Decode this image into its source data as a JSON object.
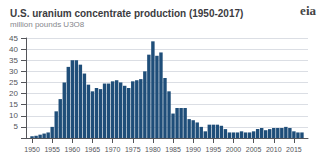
{
  "chart_data": {
    "type": "bar",
    "title": "U.S. uranium concentrate production (1950-2017)",
    "subtitle": "million pounds U3O8",
    "annotations": [
      "eia"
    ],
    "color": "#1f4e79",
    "x": [
      1950,
      1951,
      1952,
      1953,
      1954,
      1955,
      1956,
      1957,
      1958,
      1959,
      1960,
      1961,
      1962,
      1963,
      1964,
      1965,
      1966,
      1967,
      1968,
      1969,
      1970,
      1971,
      1972,
      1973,
      1974,
      1975,
      1976,
      1977,
      1978,
      1979,
      1980,
      1981,
      1982,
      1983,
      1984,
      1985,
      1986,
      1987,
      1988,
      1989,
      1990,
      1991,
      1992,
      1993,
      1994,
      1995,
      1996,
      1997,
      1998,
      1999,
      2000,
      2001,
      2002,
      2003,
      2004,
      2005,
      2006,
      2007,
      2008,
      2009,
      2010,
      2011,
      2012,
      2013,
      2014,
      2015,
      2016,
      2017
    ],
    "values": [
      0.8,
      1.0,
      1.5,
      2.0,
      2.5,
      5.0,
      12.0,
      17.5,
      25.0,
      32.0,
      35.0,
      35.0,
      33.0,
      29.0,
      24.0,
      21.0,
      22.5,
      22.0,
      24.5,
      24.5,
      25.5,
      26.0,
      25.0,
      23.5,
      22.5,
      25.5,
      26.0,
      26.5,
      30.0,
      37.5,
      43.5,
      37.0,
      38.5,
      27.0,
      21.0,
      11.0,
      13.5,
      13.5,
      13.5,
      8.5,
      8.0,
      7.0,
      5.0,
      3.0,
      6.0,
      6.0,
      6.0,
      5.5,
      4.0,
      2.5,
      2.5,
      2.5,
      3.0,
      2.5,
      2.5,
      3.0,
      4.0,
      4.5,
      3.5,
      4.0,
      4.5,
      4.5,
      4.5,
      5.0,
      4.5,
      3.0,
      2.5,
      2.5
    ],
    "xlim": [
      1948.5,
      2018.5
    ],
    "xticks": [
      1950,
      1955,
      1960,
      1965,
      1970,
      1975,
      1980,
      1985,
      1990,
      1995,
      2000,
      2005,
      2010,
      2015
    ],
    "ylim": [
      0,
      45
    ],
    "yticks": [
      {
        "value": 0,
        "label": null
      },
      5,
      10,
      15,
      20,
      25,
      30,
      35,
      40,
      45
    ],
    "grid": true
  }
}
